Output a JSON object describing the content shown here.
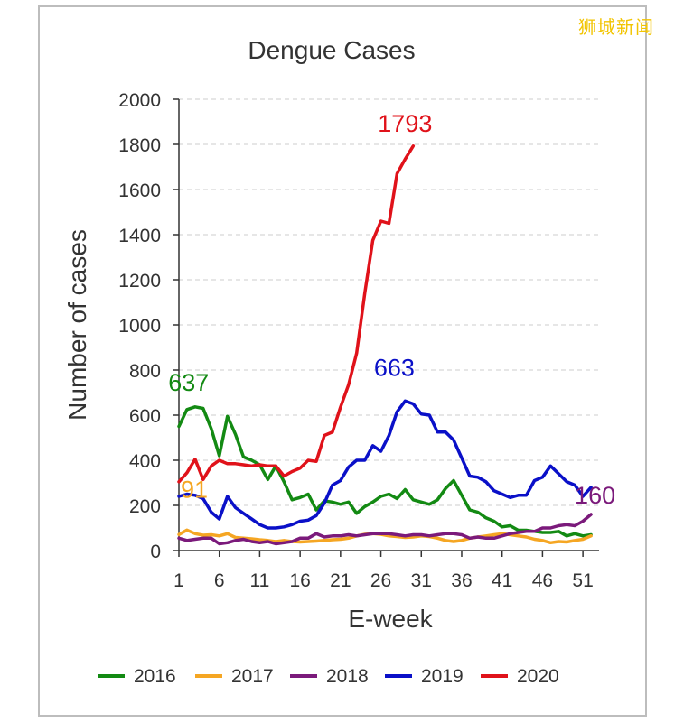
{
  "watermark": "狮城新闻",
  "colors": {
    "2016": "#138a13",
    "2017": "#f5a623",
    "2018": "#7b1a7b",
    "2019": "#0a10c8",
    "2020": "#e0121a",
    "axis": "#333333",
    "grid": "#cccccc",
    "text": "#333333"
  },
  "chart_data": {
    "type": "line",
    "title": "Dengue Cases",
    "xlabel": "E-week",
    "ylabel": "Number of cases",
    "xlim": [
      1,
      53
    ],
    "ylim": [
      0,
      2000
    ],
    "xticks": [
      1,
      6,
      11,
      16,
      21,
      26,
      31,
      36,
      41,
      46,
      51
    ],
    "yticks": [
      0,
      200,
      400,
      600,
      800,
      1000,
      1200,
      1400,
      1600,
      1800,
      2000
    ],
    "grid": "horizontal",
    "legend_position": "bottom",
    "series": [
      {
        "name": "2016",
        "x": [
          1,
          2,
          3,
          4,
          5,
          6,
          7,
          8,
          9,
          10,
          11,
          12,
          13,
          14,
          15,
          16,
          17,
          18,
          19,
          20,
          21,
          22,
          23,
          24,
          25,
          26,
          27,
          28,
          29,
          30,
          31,
          32,
          33,
          34,
          35,
          36,
          37,
          38,
          39,
          40,
          41,
          42,
          43,
          44,
          45,
          46,
          47,
          48,
          49,
          50,
          51,
          52
        ],
        "values": [
          550,
          625,
          637,
          630,
          540,
          420,
          595,
          515,
          415,
          400,
          380,
          315,
          375,
          305,
          225,
          235,
          250,
          180,
          220,
          215,
          205,
          215,
          165,
          195,
          215,
          240,
          250,
          230,
          270,
          225,
          215,
          205,
          225,
          275,
          310,
          245,
          180,
          170,
          145,
          130,
          105,
          110,
          90,
          90,
          85,
          80,
          80,
          85,
          65,
          75,
          65,
          70
        ]
      },
      {
        "name": "2017",
        "x": [
          1,
          2,
          3,
          4,
          5,
          6,
          7,
          8,
          9,
          10,
          11,
          12,
          13,
          14,
          15,
          16,
          17,
          18,
          19,
          20,
          21,
          22,
          23,
          24,
          25,
          26,
          27,
          28,
          29,
          30,
          31,
          32,
          33,
          34,
          35,
          36,
          37,
          38,
          39,
          40,
          41,
          42,
          43,
          44,
          45,
          46,
          47,
          48,
          49,
          50,
          51,
          52
        ],
        "values": [
          71,
          91,
          75,
          68,
          70,
          65,
          75,
          58,
          55,
          52,
          48,
          45,
          40,
          45,
          40,
          38,
          40,
          42,
          45,
          48,
          50,
          55,
          65,
          72,
          75,
          72,
          65,
          62,
          58,
          60,
          65,
          62,
          55,
          45,
          40,
          45,
          55,
          60,
          65,
          70,
          75,
          70,
          65,
          60,
          50,
          45,
          35,
          40,
          38,
          45,
          50,
          65
        ]
      },
      {
        "name": "2018",
        "x": [
          1,
          2,
          3,
          4,
          5,
          6,
          7,
          8,
          9,
          10,
          11,
          12,
          13,
          14,
          15,
          16,
          17,
          18,
          19,
          20,
          21,
          22,
          23,
          24,
          25,
          26,
          27,
          28,
          29,
          30,
          31,
          32,
          33,
          34,
          35,
          36,
          37,
          38,
          39,
          40,
          41,
          42,
          43,
          44,
          45,
          46,
          47,
          48,
          49,
          50,
          51,
          52
        ],
        "values": [
          55,
          45,
          50,
          55,
          55,
          30,
          35,
          45,
          50,
          40,
          35,
          40,
          30,
          35,
          40,
          55,
          55,
          75,
          60,
          65,
          65,
          70,
          65,
          70,
          75,
          75,
          75,
          70,
          65,
          70,
          70,
          65,
          70,
          75,
          75,
          70,
          55,
          60,
          55,
          55,
          65,
          75,
          80,
          85,
          85,
          100,
          100,
          110,
          115,
          110,
          130,
          160
        ]
      },
      {
        "name": "2019",
        "x": [
          1,
          2,
          3,
          4,
          5,
          6,
          7,
          8,
          9,
          10,
          11,
          12,
          13,
          14,
          15,
          16,
          17,
          18,
          19,
          20,
          21,
          22,
          23,
          24,
          25,
          26,
          27,
          28,
          29,
          30,
          31,
          32,
          33,
          34,
          35,
          36,
          37,
          38,
          39,
          40,
          41,
          42,
          43,
          44,
          45,
          46,
          47,
          48,
          49,
          50,
          51,
          52
        ],
        "values": [
          240,
          250,
          245,
          230,
          170,
          140,
          240,
          190,
          165,
          140,
          115,
          100,
          100,
          105,
          115,
          130,
          135,
          155,
          210,
          290,
          310,
          370,
          400,
          400,
          465,
          440,
          510,
          615,
          663,
          650,
          605,
          600,
          525,
          525,
          490,
          410,
          330,
          325,
          305,
          265,
          250,
          235,
          245,
          245,
          310,
          325,
          375,
          340,
          305,
          290,
          240,
          280
        ]
      },
      {
        "name": "2020",
        "x": [
          1,
          2,
          3,
          4,
          5,
          6,
          7,
          8,
          9,
          10,
          11,
          12,
          13,
          14,
          15,
          16,
          17,
          18,
          19,
          20,
          21,
          22,
          23,
          24,
          25,
          26,
          27,
          28,
          29,
          30
        ],
        "values": [
          305,
          345,
          405,
          315,
          375,
          400,
          385,
          385,
          380,
          375,
          380,
          375,
          375,
          330,
          350,
          365,
          400,
          395,
          510,
          525,
          635,
          735,
          875,
          1140,
          1375,
          1460,
          1450,
          1670,
          1735,
          1793
        ]
      }
    ],
    "annotations": [
      {
        "text": "637",
        "series": "2016"
      },
      {
        "text": "91",
        "series": "2017"
      },
      {
        "text": "160",
        "series": "2018"
      },
      {
        "text": "663",
        "series": "2019"
      },
      {
        "text": "1793",
        "series": "2020"
      }
    ]
  }
}
